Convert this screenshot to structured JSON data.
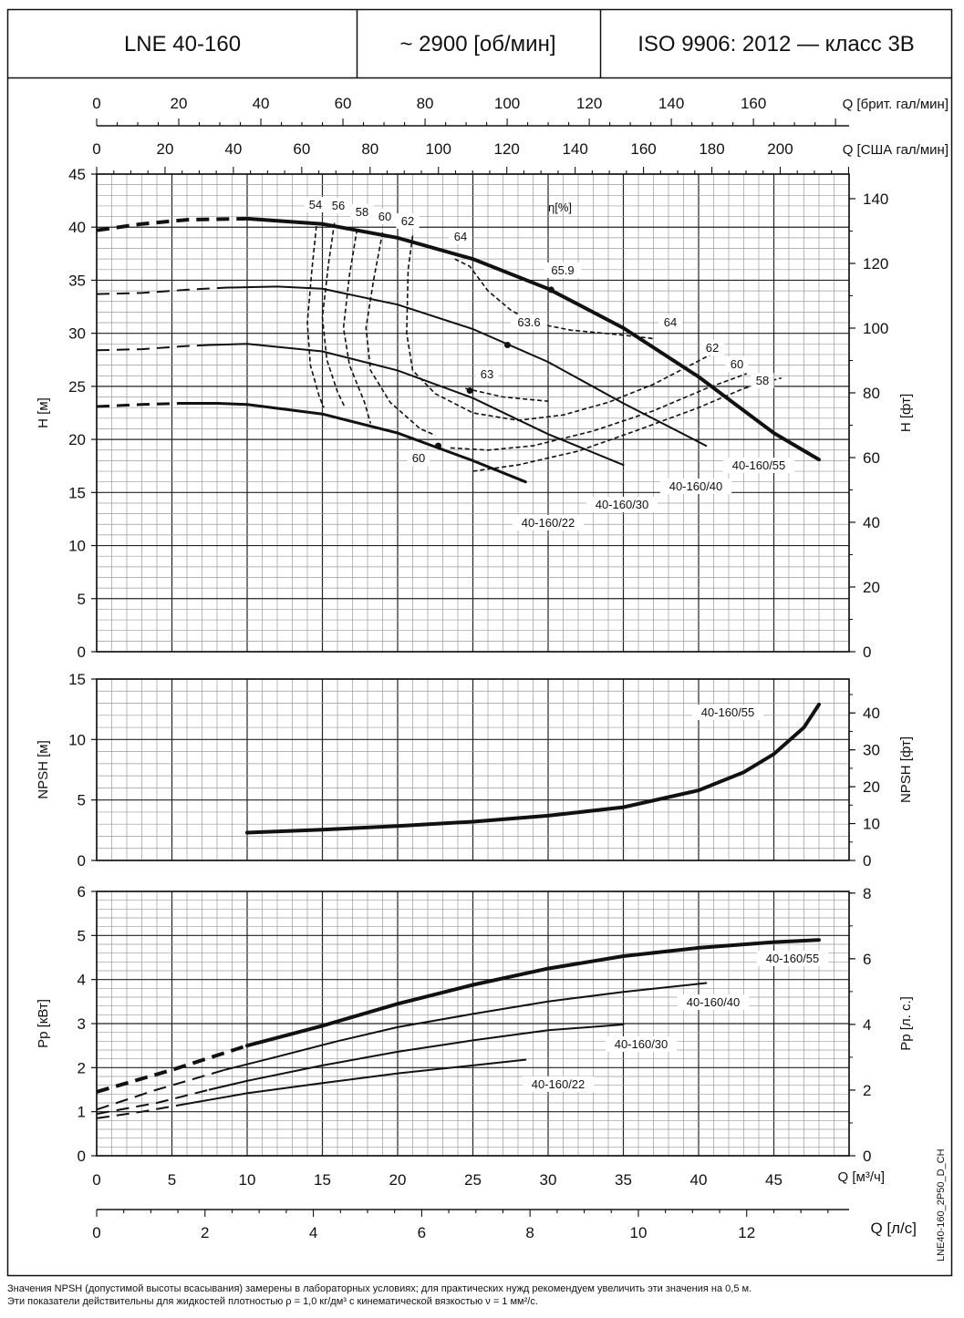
{
  "header": {
    "model": "LNE 40-160",
    "speed": "~ 2900 [об/мин]",
    "standard": "ISO 9906: 2012 — класс 3B"
  },
  "code": "LNE40-160_2P50_D_CH",
  "notes": [
    "Значения NPSH (допустимой высоты всасывания) замерены в лабораторных условиях; для практических нужд рекомендуем увеличить эти значения на 0,5 м.",
    "Эти показатели действительны для жидкостей плотностью ρ = 1,0 кг/дм³ с кинематической вязкостью ν = 1 мм²/с."
  ],
  "chart_data": [
    {
      "type": "line",
      "title": "H–Q",
      "xlabel": "Q [м³/ч]",
      "ylabel": "H [м]",
      "ylabel_right": "H [фт]",
      "xlim": [
        0,
        50
      ],
      "ylim": [
        0,
        45
      ],
      "ylim_right": [
        0,
        147.6
      ],
      "grid": true,
      "x_ticks": [
        0,
        5,
        10,
        15,
        20,
        25,
        30,
        35,
        40,
        45
      ],
      "y_ticks": [
        0,
        5,
        10,
        15,
        20,
        25,
        30,
        35,
        40,
        45
      ],
      "y_ticks_right": [
        0,
        20,
        40,
        60,
        80,
        100,
        120,
        140
      ],
      "top_axes": [
        {
          "label": "Q [брит. гал/мин]",
          "factor": 3.666,
          "ticks": [
            0,
            20,
            40,
            60,
            80,
            100,
            120,
            140,
            160
          ]
        },
        {
          "label": "Q [США гал/мин]",
          "factor": 4.403,
          "ticks": [
            0,
            20,
            40,
            60,
            80,
            100,
            120,
            140,
            160,
            180,
            200
          ]
        }
      ],
      "efficiency_label": "η[%]",
      "series": [
        {
          "name": "40-160/55",
          "width": 4,
          "dashed": [
            [
              0,
              39.7
            ],
            [
              3,
              40.3
            ],
            [
              6,
              40.7
            ],
            [
              10,
              40.8
            ]
          ],
          "points": [
            [
              10,
              40.8
            ],
            [
              15,
              40.3
            ],
            [
              20,
              39
            ],
            [
              25,
              37
            ],
            [
              30,
              34.2
            ],
            [
              35,
              30.5
            ],
            [
              40,
              25.9
            ],
            [
              45,
              20.6
            ],
            [
              48,
              18.1
            ]
          ]
        },
        {
          "name": "40-160/40",
          "width": 2,
          "dashed": [
            [
              0,
              33.7
            ],
            [
              3,
              33.8
            ],
            [
              6,
              34.1
            ],
            [
              8.5,
              34.3
            ]
          ],
          "points": [
            [
              8.5,
              34.3
            ],
            [
              12,
              34.4
            ],
            [
              15,
              34.2
            ],
            [
              20,
              32.7
            ],
            [
              25,
              30.4
            ],
            [
              30,
              27.3
            ],
            [
              35,
              23.4
            ],
            [
              40.5,
              19.4
            ]
          ]
        },
        {
          "name": "40-160/30",
          "width": 2,
          "dashed": [
            [
              0,
              28.4
            ],
            [
              3,
              28.5
            ],
            [
              6,
              28.8
            ],
            [
              7.5,
              28.9
            ]
          ],
          "points": [
            [
              7.5,
              28.9
            ],
            [
              10,
              29.0
            ],
            [
              15,
              28.3
            ],
            [
              20,
              26.5
            ],
            [
              25,
              23.9
            ],
            [
              30,
              20.5
            ],
            [
              35,
              17.6
            ]
          ]
        },
        {
          "name": "40-160/22",
          "width": 3,
          "dashed": [
            [
              0,
              23.1
            ],
            [
              3,
              23.3
            ],
            [
              5.5,
              23.4
            ]
          ],
          "points": [
            [
              5.5,
              23.4
            ],
            [
              8,
              23.4
            ],
            [
              10,
              23.3
            ],
            [
              15,
              22.4
            ],
            [
              20,
              20.6
            ],
            [
              25,
              18.0
            ],
            [
              28.5,
              16.0
            ]
          ]
        }
      ],
      "efficiency_curves": [
        {
          "name": "54",
          "points": [
            [
              14.6,
              40.1
            ],
            [
              14.3,
              36
            ],
            [
              14.0,
              31
            ],
            [
              14.2,
              27
            ],
            [
              14.8,
              24
            ],
            [
              15.1,
              23.0
            ]
          ]
        },
        {
          "name": "56",
          "points": [
            [
              15.8,
              40.4
            ],
            [
              15.4,
              36.5
            ],
            [
              15.0,
              31.5
            ],
            [
              15.3,
              27.5
            ],
            [
              16.0,
              24.5
            ],
            [
              16.5,
              23.0
            ]
          ]
        },
        {
          "name": "58",
          "points": [
            [
              17.3,
              39.8
            ],
            [
              16.8,
              35.5
            ],
            [
              16.4,
              30.5
            ],
            [
              16.8,
              27
            ],
            [
              17.8,
              23.5
            ],
            [
              18.2,
              21.5
            ]
          ]
        },
        {
          "name": "60",
          "points": [
            [
              19.0,
              39.5
            ],
            [
              18.4,
              35
            ],
            [
              17.9,
              30.5
            ],
            [
              18.2,
              26.5
            ],
            [
              19.5,
              23.5
            ],
            [
              21.5,
              21.0
            ],
            [
              22.5,
              20.4
            ]
          ]
        },
        {
          "name": "62",
          "points": [
            [
              21.0,
              39.2
            ],
            [
              20.7,
              36
            ],
            [
              20.6,
              30
            ],
            [
              21.0,
              26.5
            ],
            [
              22.5,
              24.3
            ],
            [
              25,
              22.5
            ],
            [
              28,
              21.8
            ],
            [
              31,
              22.3
            ],
            [
              34,
              23.5
            ],
            [
              37,
              25.2
            ],
            [
              40,
              27.4
            ],
            [
              41.5,
              28.5
            ]
          ]
        },
        {
          "name": "63",
          "points": [
            [
              24.5,
              24.8
            ],
            [
              27,
              24.0
            ],
            [
              30,
              23.6
            ]
          ]
        },
        {
          "name": "64",
          "points": [
            [
              23.8,
              37.0
            ],
            [
              24.8,
              36.3
            ],
            [
              26,
              34.0
            ],
            [
              27.5,
              32.2
            ],
            [
              29,
              31.0
            ],
            [
              31.5,
              30.3
            ],
            [
              34.5,
              29.9
            ],
            [
              37,
              29.5
            ]
          ]
        },
        {
          "name": "60",
          "points": [
            [
              23.5,
              19.2
            ],
            [
              26,
              19.0
            ],
            [
              29,
              19.4
            ],
            [
              33,
              20.8
            ],
            [
              37,
              22.7
            ],
            [
              40.5,
              24.8
            ],
            [
              43.2,
              26.2
            ]
          ]
        },
        {
          "name": "58",
          "points": [
            [
              25,
              17.0
            ],
            [
              28,
              17.6
            ],
            [
              32,
              18.9
            ],
            [
              36,
              20.9
            ],
            [
              40,
              23.0
            ],
            [
              43,
              24.8
            ],
            [
              45.5,
              25.8
            ]
          ]
        }
      ],
      "point_labels": [
        {
          "text": "65.9",
          "x": 30.2,
          "y": 34.1
        },
        {
          "text": "63.6",
          "x": 27.3,
          "y": 28.9
        },
        {
          "text": "63",
          "x": 24.8,
          "y": 24.6
        },
        {
          "text": "60",
          "x": 22.7,
          "y": 19.4
        }
      ]
    },
    {
      "type": "line",
      "title": "NPSH–Q",
      "ylabel": "NPSH [м]",
      "ylabel_right": "NPSH [фт]",
      "xlim": [
        0,
        50
      ],
      "ylim": [
        0,
        15
      ],
      "ylim_right": [
        0,
        49.2
      ],
      "grid": true,
      "y_ticks": [
        0,
        5,
        10,
        15
      ],
      "y_ticks_right": [
        0,
        10,
        20,
        30,
        40
      ],
      "series": [
        {
          "name": "40-160/55",
          "width": 4,
          "points": [
            [
              10,
              2.3
            ],
            [
              15,
              2.55
            ],
            [
              20,
              2.85
            ],
            [
              25,
              3.2
            ],
            [
              30,
              3.7
            ],
            [
              35,
              4.4
            ],
            [
              40,
              5.8
            ],
            [
              43,
              7.3
            ],
            [
              45,
              8.8
            ],
            [
              47,
              11.0
            ],
            [
              48,
              12.9
            ]
          ]
        }
      ]
    },
    {
      "type": "line",
      "title": "Pp–Q",
      "xlabel": "Q [м³/ч]",
      "ylabel": "Pp [кВт]",
      "ylabel_right": "Pp [л. с.]",
      "xlim": [
        0,
        50
      ],
      "ylim": [
        0,
        6
      ],
      "ylim_right": [
        0,
        8.05
      ],
      "grid": true,
      "x_ticks": [
        0,
        5,
        10,
        15,
        20,
        25,
        30,
        35,
        40,
        45
      ],
      "y_ticks": [
        0,
        1,
        2,
        3,
        4,
        5,
        6
      ],
      "y_ticks_right": [
        0,
        2,
        4,
        6,
        8
      ],
      "bottom_axis": {
        "label": "Q [л/с]",
        "factor": 0.2778,
        "ticks": [
          0,
          2,
          4,
          6,
          8,
          10,
          12
        ]
      },
      "series": [
        {
          "name": "40-160/55",
          "width": 4,
          "dashed": [
            [
              0,
              1.45
            ],
            [
              5,
              1.95
            ],
            [
              10,
              2.5
            ]
          ],
          "points": [
            [
              10,
              2.5
            ],
            [
              15,
              2.95
            ],
            [
              20,
              3.45
            ],
            [
              25,
              3.88
            ],
            [
              30,
              4.25
            ],
            [
              35,
              4.53
            ],
            [
              40,
              4.72
            ],
            [
              45,
              4.85
            ],
            [
              48,
              4.9
            ]
          ]
        },
        {
          "name": "40-160/40",
          "width": 2,
          "dashed": [
            [
              0,
              1.05
            ],
            [
              4,
              1.5
            ],
            [
              8.5,
              1.95
            ]
          ],
          "points": [
            [
              8.5,
              1.95
            ],
            [
              12,
              2.25
            ],
            [
              16,
              2.6
            ],
            [
              20,
              2.92
            ],
            [
              25,
              3.22
            ],
            [
              30,
              3.5
            ],
            [
              35,
              3.72
            ],
            [
              40.5,
              3.92
            ]
          ]
        },
        {
          "name": "40-160/30",
          "width": 2,
          "dashed": [
            [
              0,
              0.95
            ],
            [
              4,
              1.2
            ],
            [
              7.5,
              1.5
            ]
          ],
          "points": [
            [
              7.5,
              1.5
            ],
            [
              10,
              1.7
            ],
            [
              15,
              2.05
            ],
            [
              20,
              2.36
            ],
            [
              25,
              2.62
            ],
            [
              30,
              2.85
            ],
            [
              35,
              2.98
            ]
          ]
        },
        {
          "name": "40-160/22",
          "width": 2,
          "dashed": [
            [
              0,
              0.85
            ],
            [
              3,
              1.0
            ],
            [
              5.5,
              1.15
            ]
          ],
          "points": [
            [
              5.5,
              1.15
            ],
            [
              8,
              1.3
            ],
            [
              10,
              1.42
            ],
            [
              15,
              1.65
            ],
            [
              20,
              1.87
            ],
            [
              25,
              2.05
            ],
            [
              28.5,
              2.18
            ]
          ]
        }
      ]
    }
  ]
}
